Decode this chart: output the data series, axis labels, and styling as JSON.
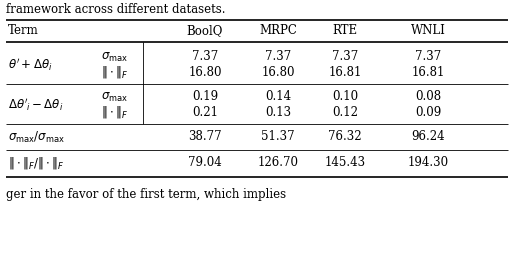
{
  "title_above": "framework across different datasets.",
  "text_below": "ger in the favor of the first term, which implies",
  "col_headers": [
    "Term",
    "",
    "BoolQ",
    "MRPC",
    "RTE",
    "WNLI"
  ],
  "rows": [
    {
      "vals_1": [
        "7.37",
        "7.37",
        "7.37",
        "7.37"
      ],
      "vals_2": [
        "16.80",
        "16.80",
        "16.81",
        "16.81"
      ]
    },
    {
      "vals_1": [
        "0.19",
        "0.14",
        "0.10",
        "0.08"
      ],
      "vals_2": [
        "0.21",
        "0.13",
        "0.12",
        "0.09"
      ]
    }
  ],
  "ratio_rows": [
    {
      "vals": [
        "38.77",
        "51.37",
        "76.32",
        "96.24"
      ]
    },
    {
      "vals": [
        "79.04",
        "126.70",
        "145.43",
        "194.30"
      ]
    }
  ],
  "bg_color": "#ffffff",
  "text_color": "#000000",
  "font_size": 8.5
}
